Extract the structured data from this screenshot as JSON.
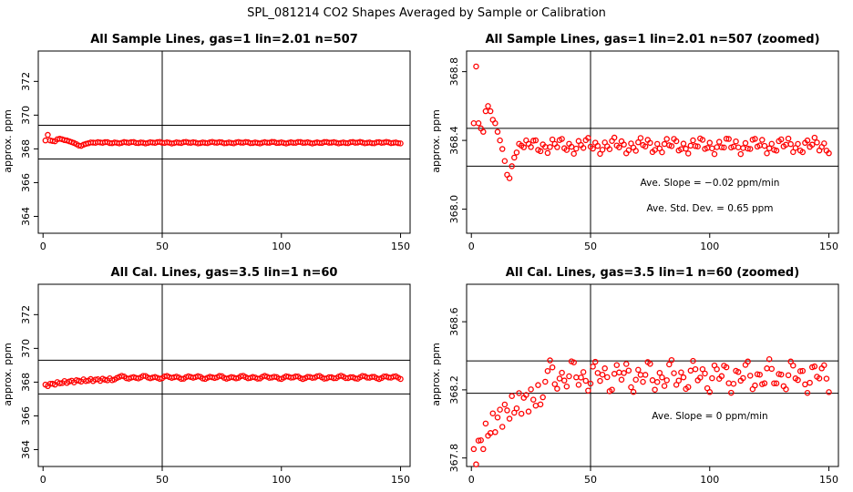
{
  "figure": {
    "title": "SPL_081214  CO2 Shapes Averaged by Sample or Calibration",
    "series_color": "#ff0000"
  },
  "chart_data": [
    {
      "type": "scatter",
      "title": "All Sample Lines, gas=1 lin=2.01 n=507",
      "xlabel": "",
      "ylabel": "approx. ppm",
      "xlim": [
        -2,
        154
      ],
      "ylim": [
        363,
        373.8
      ],
      "xticks": [
        0,
        50,
        100,
        150
      ],
      "yticks": [
        364,
        366,
        368,
        370,
        372
      ],
      "hlines": [
        367.4,
        369.4
      ],
      "vline": 50,
      "annotations": [],
      "series": [
        {
          "name": "",
          "profile": "sample",
          "x_from": 1,
          "x_to": 150,
          "y_offset": 0,
          "y_scale": 1
        }
      ]
    },
    {
      "type": "scatter",
      "title": "All Sample Lines, gas=1 lin=2.01 n=507 (zoomed)",
      "xlabel": "",
      "ylabel": "approx. ppm",
      "xlim": [
        -2,
        154
      ],
      "ylim": [
        367.86,
        368.92
      ],
      "xticks": [
        0,
        50,
        100,
        150
      ],
      "yticks": [
        368.0,
        368.4,
        368.8
      ],
      "hlines": [
        368.25,
        368.47
      ],
      "vline": 50,
      "annotations": [
        "Ave. Slope = -0.02  ppm/min",
        "Ave. Std. Dev. = 0.65  ppm"
      ],
      "series": [
        {
          "name": "",
          "profile": "sample",
          "x_from": 1,
          "x_to": 150,
          "y_offset": 0,
          "y_scale": 1
        }
      ]
    },
    {
      "type": "scatter",
      "title": "All Cal. Lines, gas=3.5 lin=1 n=60",
      "xlabel": "",
      "ylabel": "approx. ppm",
      "xlim": [
        -2,
        154
      ],
      "ylim": [
        363,
        373.8
      ],
      "xticks": [
        0,
        50,
        100,
        150
      ],
      "yticks": [
        364,
        366,
        368,
        370,
        372
      ],
      "hlines": [
        367.3,
        369.3
      ],
      "vline": 50,
      "annotations": [],
      "series": [
        {
          "name": "",
          "profile": "cal",
          "x_from": 1,
          "x_to": 150,
          "y_offset": 0,
          "y_scale": 1
        }
      ]
    },
    {
      "type": "scatter",
      "title": "All Cal. Lines, gas=3.5 lin=1 n=60 (zoomed)",
      "xlabel": "",
      "ylabel": "approx. ppm",
      "xlim": [
        -2,
        154
      ],
      "ylim": [
        367.75,
        368.82
      ],
      "xticks": [
        0,
        50,
        100,
        150
      ],
      "yticks": [
        367.8,
        368.2,
        368.6
      ],
      "hlines": [
        368.18,
        368.37
      ],
      "vline": 50,
      "annotations": [
        "Ave. Slope = 0  ppm/min"
      ],
      "series": [
        {
          "name": "",
          "profile": "cal",
          "x_from": 1,
          "x_to": 150,
          "y_offset": 0,
          "y_scale": 1
        }
      ]
    }
  ]
}
